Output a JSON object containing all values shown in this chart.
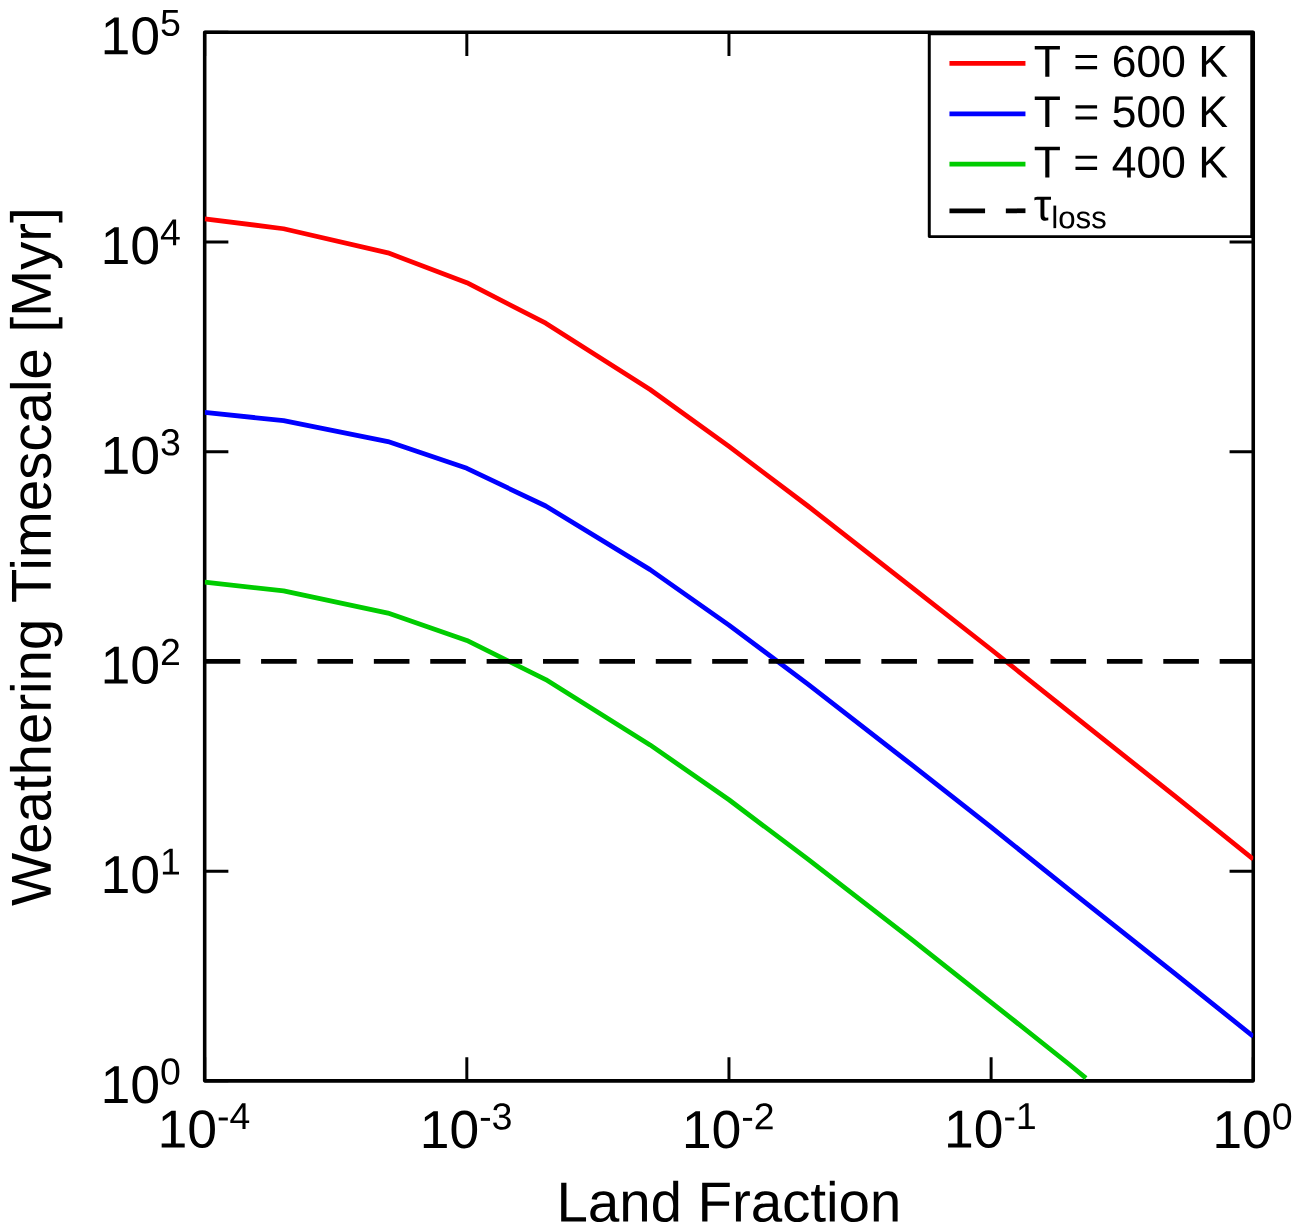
{
  "chart_data": {
    "type": "line",
    "xlabel": "Land Fraction",
    "ylabel": "Weathering Timescale [Myr]",
    "log": "xy",
    "x": [
      0.0001,
      0.0002,
      0.0005,
      0.001,
      0.002,
      0.005,
      0.01,
      0.02,
      0.05,
      0.1,
      0.2,
      0.5,
      1
    ],
    "series": [
      {
        "name": "T = 600 K",
        "color": "#ff0000",
        "values": [
          12900,
          11570,
          8880,
          6400,
          4100,
          1980,
          1060,
          551,
          225,
          114,
          57,
          22.9,
          11.4
        ]
      },
      {
        "name": "T = 500 K",
        "color": "#0000ff",
        "values": [
          1540,
          1407,
          1118,
          833,
          551,
          274,
          149,
          78,
          32,
          16.2,
          8.1,
          3.26,
          1.63
        ]
      },
      {
        "name": "T = 400 K",
        "color": "#00cc00",
        "x": [
          0.0001,
          0.0002,
          0.0005,
          0.001,
          0.002,
          0.005,
          0.01,
          0.02,
          0.05,
          0.1,
          0.2,
          0.23
        ],
        "values": [
          239,
          217,
          170,
          126,
          82,
          40,
          21.9,
          11.4,
          4.7,
          2.37,
          1.19,
          1.03
        ]
      }
    ],
    "ref_lines": [
      {
        "axis": "y",
        "value": 100,
        "label": "τ$_{loss}$",
        "color": "#000000",
        "line_style": "dashed"
      }
    ],
    "xlim": [
      0.0001,
      1
    ],
    "ylim": [
      1,
      100000
    ],
    "xticks": [
      {
        "value": 0.0001,
        "label": "10$^{-4}$"
      },
      {
        "value": 0.001,
        "label": "10$^{-3}$"
      },
      {
        "value": 0.01,
        "label": "10$^{-2}$"
      },
      {
        "value": 0.1,
        "label": "10$^{-1}$"
      },
      {
        "value": 1,
        "label": "10$^{0}$"
      }
    ],
    "yticks": [
      {
        "value": 1,
        "label": "10$^{0}$"
      },
      {
        "value": 10,
        "label": "10$^{1}$"
      },
      {
        "value": 100,
        "label": "10$^{2}$"
      },
      {
        "value": 1000,
        "label": "10$^{3}$"
      },
      {
        "value": 10000,
        "label": "10$^{4}$"
      },
      {
        "value": 100000,
        "label": "10$^{5}$"
      }
    ],
    "legend": "top right",
    "grid": false,
    "marker": "none",
    "line_style": "solid"
  }
}
